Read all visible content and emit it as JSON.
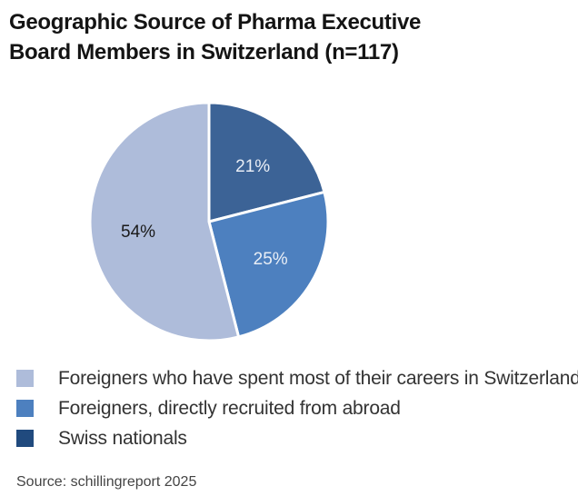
{
  "chart_data": {
    "type": "pie",
    "title_lines": [
      "Geographic Source of Pharma Executive",
      "Board Members in Switzerland (n=117)"
    ],
    "slices": [
      {
        "name": "Swiss nationals",
        "value": 21,
        "label": "21%",
        "color": "#3c6396",
        "label_color": "#e9eef6"
      },
      {
        "name": "Foreigners, directly recruited from abroad",
        "value": 25,
        "label": "25%",
        "color": "#4d80bf",
        "label_color": "#e9eef6"
      },
      {
        "name": "Foreigners who have spent most of their careers in Switzerland",
        "value": 54,
        "label": "54%",
        "color": "#aebcda",
        "label_color": "#1a1a1a"
      }
    ],
    "legend_order": [
      2,
      1,
      0
    ],
    "legend_colors": [
      "#aebcda",
      "#4d80bf",
      "#204a7e"
    ],
    "legend_placement": "bottom",
    "start": "12 o'clock",
    "direction": "clockwise"
  },
  "source": "Source: schillingreport 2025"
}
